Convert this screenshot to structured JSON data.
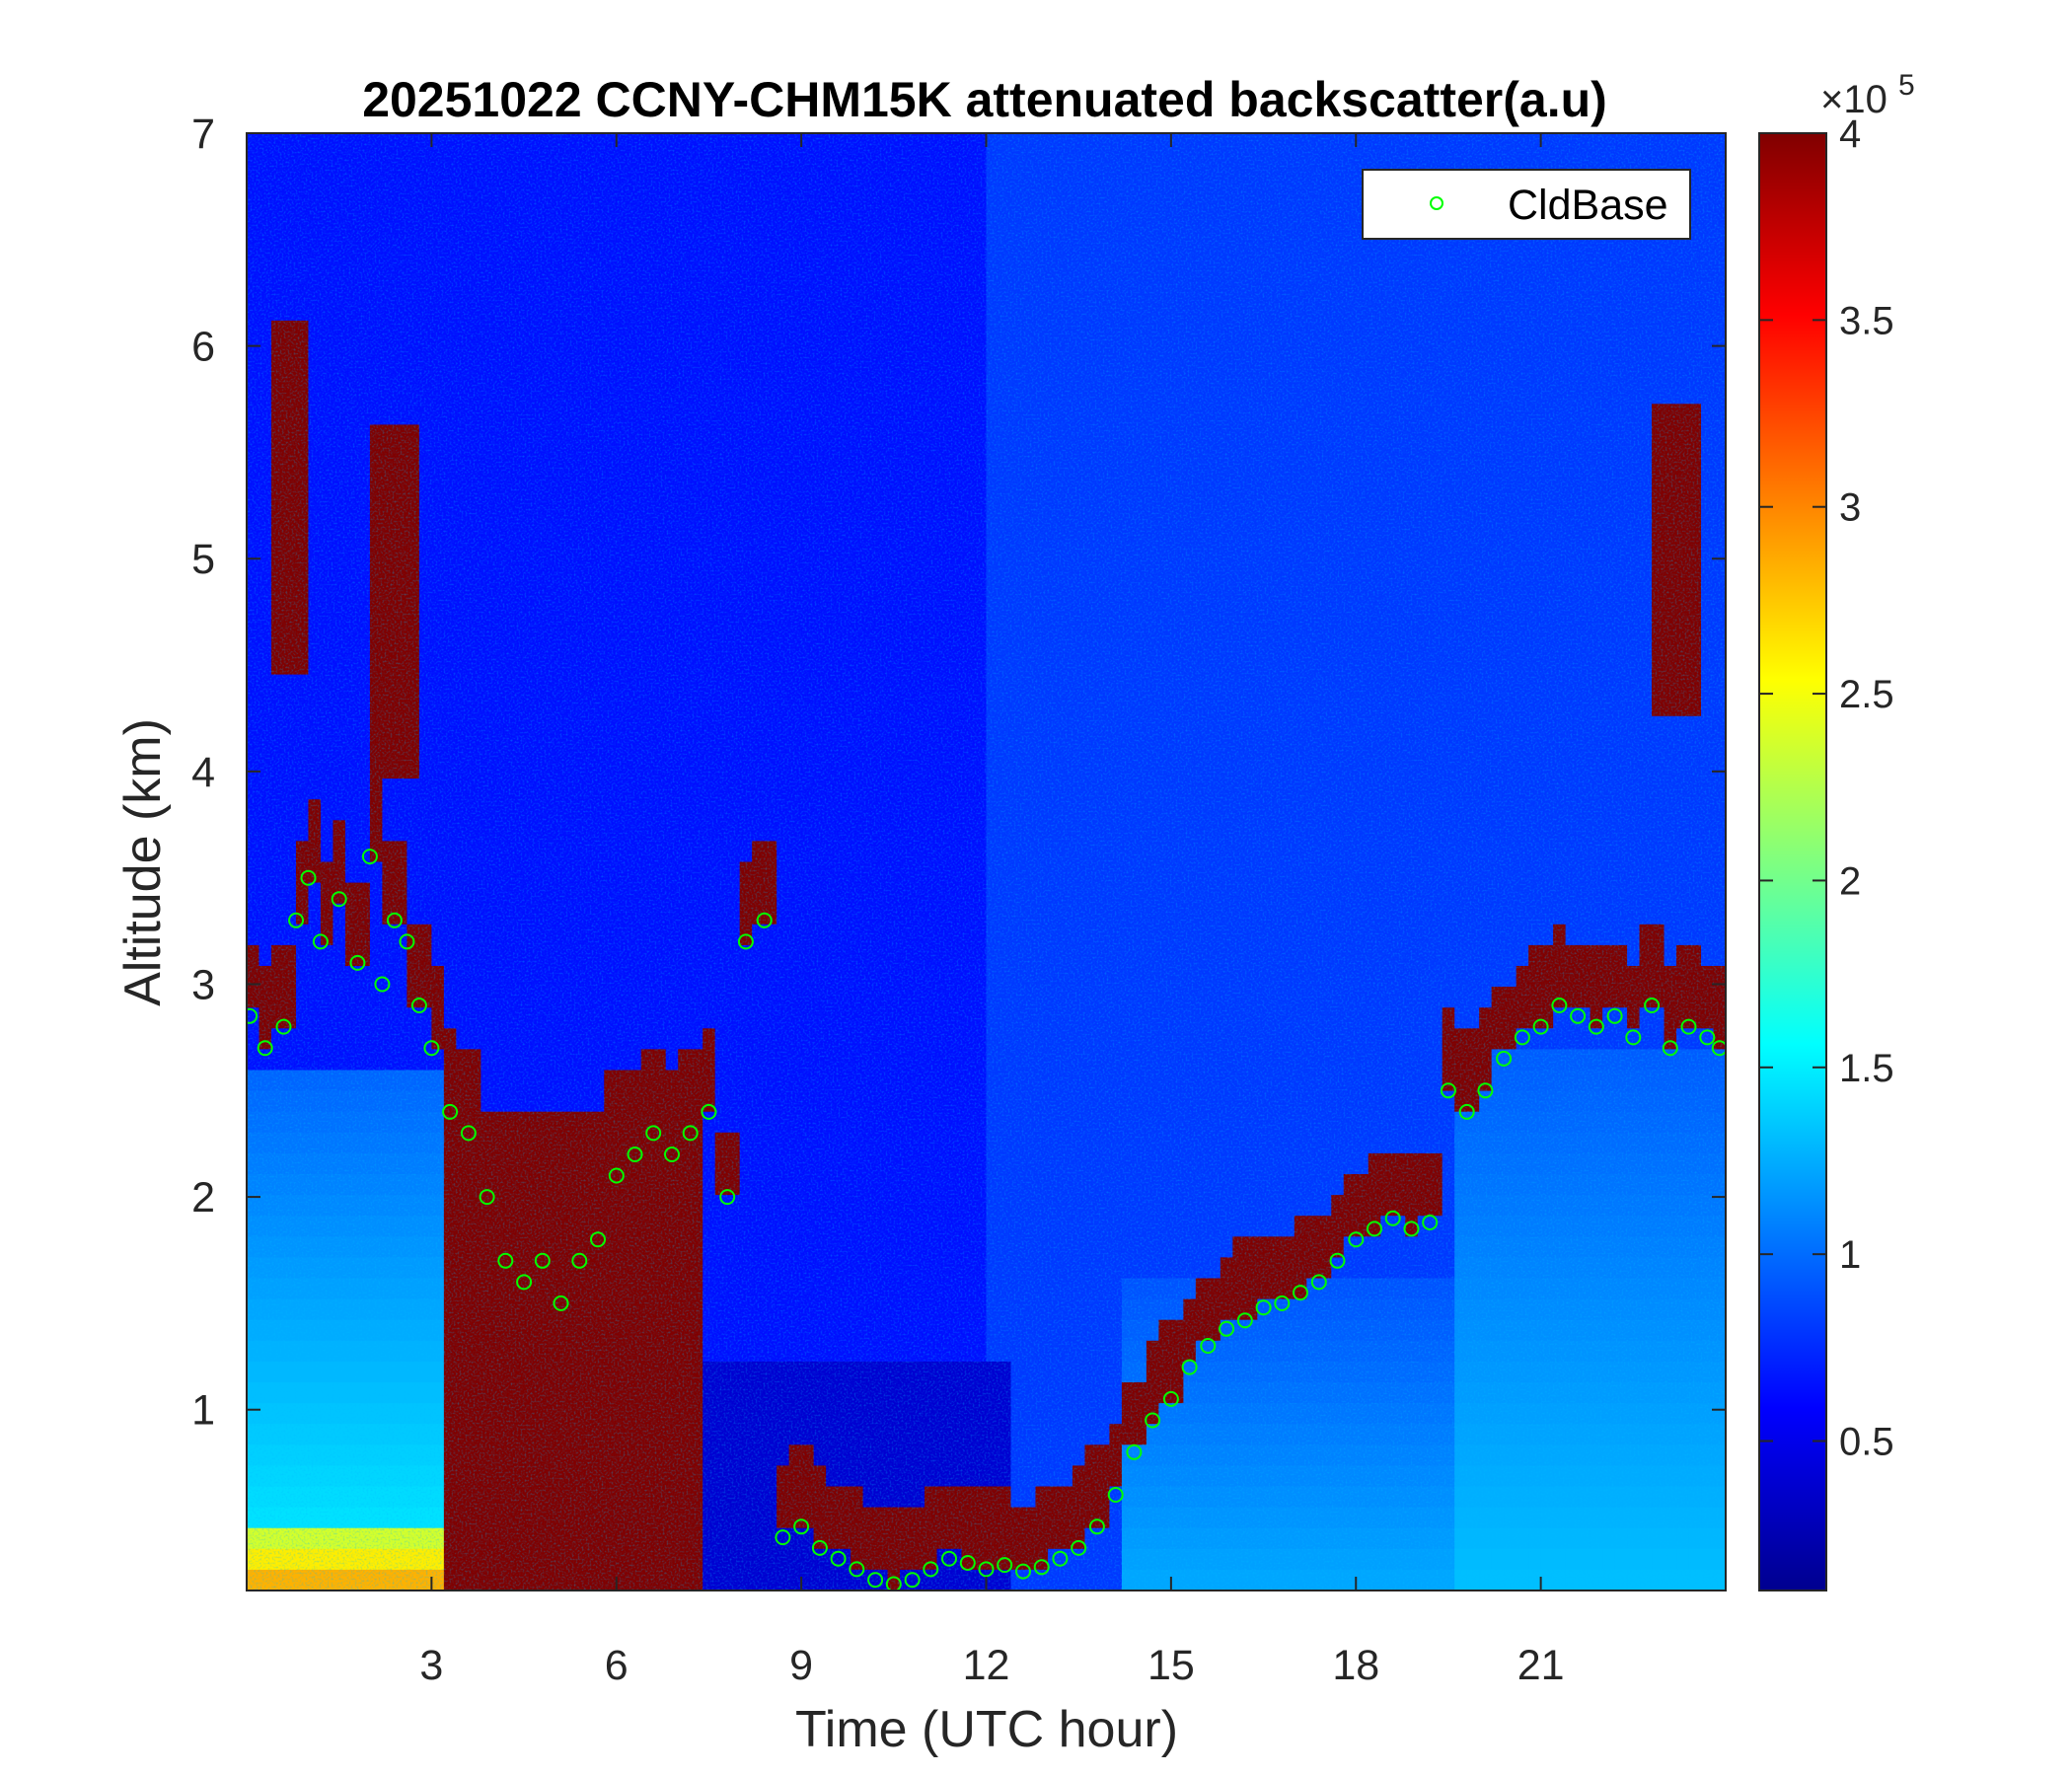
{
  "chart_data": {
    "type": "heatmap",
    "title": "20251022 CCNY-CHM15K attenuated backscatter(a.u)",
    "xlabel": "Time (UTC hour)",
    "ylabel": "Altitude (km)",
    "xlim": [
      0,
      24
    ],
    "ylim": [
      0.15,
      7
    ],
    "xticks": [
      3,
      6,
      9,
      12,
      15,
      18,
      21
    ],
    "yticks": [
      1,
      2,
      3,
      4,
      5,
      6,
      7
    ],
    "colormap": "jet",
    "colorbar": {
      "clim": [
        0.1,
        4
      ],
      "ticks": [
        0.5,
        1,
        1.5,
        2,
        2.5,
        3,
        3.5,
        4
      ],
      "multiplier_base": "×10",
      "multiplier_exponent": "5"
    },
    "grid": false,
    "legend": {
      "placement": "top-right",
      "entries": [
        "CldBase"
      ]
    },
    "cloud_base_series": {
      "name": "CldBase",
      "marker": "open circle",
      "color": "#00ff00",
      "x": [
        0.05,
        0.3,
        0.6,
        0.8,
        1.0,
        1.2,
        1.5,
        1.8,
        2.0,
        2.2,
        2.4,
        2.6,
        2.8,
        3.0,
        3.3,
        3.6,
        3.9,
        4.2,
        4.5,
        4.8,
        5.1,
        5.4,
        5.7,
        6.0,
        6.3,
        6.6,
        6.9,
        7.2,
        7.5,
        7.8,
        8.1,
        8.4,
        8.7,
        9.0,
        9.3,
        9.6,
        9.9,
        10.2,
        10.5,
        10.8,
        11.1,
        11.4,
        11.7,
        12.0,
        12.3,
        12.6,
        12.9,
        13.2,
        13.5,
        13.8,
        14.1,
        14.4,
        14.7,
        15.0,
        15.3,
        15.6,
        15.9,
        16.2,
        16.5,
        16.8,
        17.1,
        17.4,
        17.7,
        18.0,
        18.3,
        18.6,
        18.9,
        19.2,
        19.5,
        19.8,
        20.1,
        20.4,
        20.7,
        21.0,
        21.3,
        21.6,
        21.9,
        22.2,
        22.5,
        22.8,
        23.1,
        23.4,
        23.7,
        23.9
      ],
      "y": [
        2.85,
        2.7,
        2.8,
        3.3,
        3.5,
        3.2,
        3.4,
        3.1,
        3.6,
        3.0,
        3.3,
        3.2,
        2.9,
        2.7,
        2.4,
        2.3,
        2.0,
        1.7,
        1.6,
        1.7,
        1.5,
        1.7,
        1.8,
        2.1,
        2.2,
        2.3,
        2.2,
        2.3,
        2.4,
        2.0,
        3.2,
        3.3,
        0.4,
        0.45,
        0.35,
        0.3,
        0.25,
        0.2,
        0.18,
        0.2,
        0.25,
        0.3,
        0.28,
        0.25,
        0.27,
        0.24,
        0.26,
        0.3,
        0.35,
        0.45,
        0.6,
        0.8,
        0.95,
        1.05,
        1.2,
        1.3,
        1.38,
        1.42,
        1.48,
        1.5,
        1.55,
        1.6,
        1.7,
        1.8,
        1.85,
        1.9,
        1.85,
        1.88,
        2.5,
        2.4,
        2.5,
        2.65,
        2.75,
        2.8,
        2.9,
        2.85,
        2.8,
        2.85,
        2.75,
        2.9,
        2.7,
        2.8,
        2.75,
        2.7
      ]
    }
  }
}
